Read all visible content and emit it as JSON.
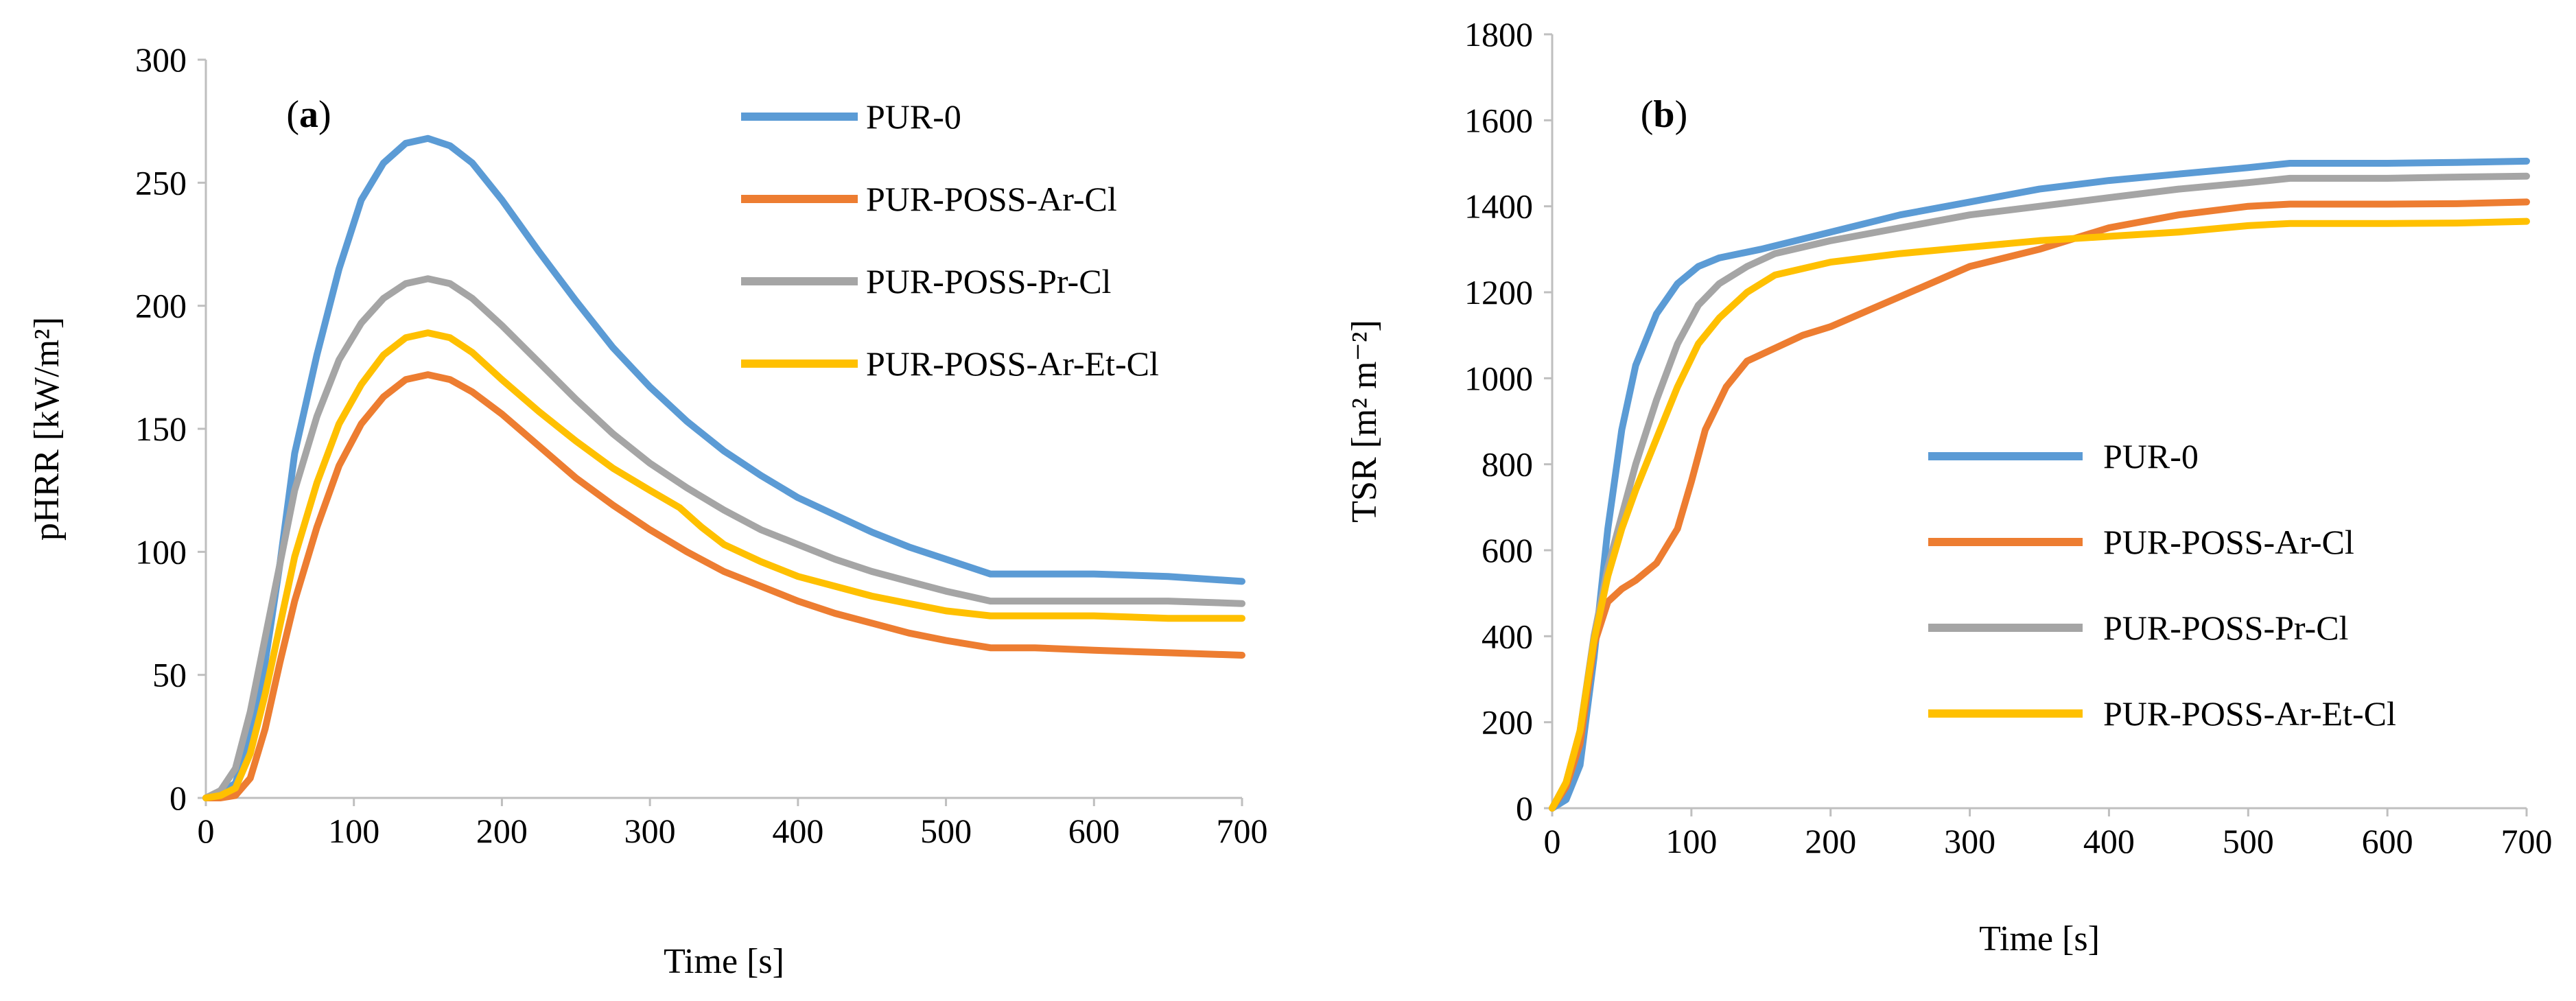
{
  "chart_data": [
    {
      "type": "line",
      "panel_label": "a",
      "xlabel": "Time [s]",
      "ylabel": "pHRR [kW/m²]",
      "xlim": [
        0,
        700
      ],
      "ylim": [
        0,
        300
      ],
      "xticks": [
        0,
        100,
        200,
        300,
        400,
        500,
        600,
        700
      ],
      "yticks": [
        0,
        50,
        100,
        150,
        200,
        250,
        300
      ],
      "legend_position": "top-right",
      "series": [
        {
          "name": "PUR-0",
          "color": "#5b9bd5",
          "points": [
            [
              0,
              0
            ],
            [
              10,
              2
            ],
            [
              20,
              6
            ],
            [
              30,
              25
            ],
            [
              40,
              55
            ],
            [
              50,
              95
            ],
            [
              60,
              140
            ],
            [
              75,
              180
            ],
            [
              90,
              215
            ],
            [
              105,
              243
            ],
            [
              120,
              258
            ],
            [
              135,
              266
            ],
            [
              150,
              268
            ],
            [
              165,
              265
            ],
            [
              180,
              258
            ],
            [
              200,
              243
            ],
            [
              225,
              222
            ],
            [
              250,
              202
            ],
            [
              275,
              183
            ],
            [
              300,
              167
            ],
            [
              325,
              153
            ],
            [
              350,
              141
            ],
            [
              375,
              131
            ],
            [
              400,
              122
            ],
            [
              425,
              115
            ],
            [
              450,
              108
            ],
            [
              475,
              102
            ],
            [
              500,
              97
            ],
            [
              530,
              91
            ],
            [
              560,
              91
            ],
            [
              600,
              91
            ],
            [
              650,
              90
            ],
            [
              700,
              88
            ]
          ]
        },
        {
          "name": "PUR-POSS-Ar-Cl",
          "color": "#ed7d31",
          "points": [
            [
              0,
              0
            ],
            [
              10,
              0
            ],
            [
              20,
              1
            ],
            [
              30,
              8
            ],
            [
              40,
              28
            ],
            [
              50,
              55
            ],
            [
              60,
              80
            ],
            [
              75,
              110
            ],
            [
              90,
              135
            ],
            [
              105,
              152
            ],
            [
              120,
              163
            ],
            [
              135,
              170
            ],
            [
              150,
              172
            ],
            [
              165,
              170
            ],
            [
              180,
              165
            ],
            [
              200,
              156
            ],
            [
              225,
              143
            ],
            [
              250,
              130
            ],
            [
              275,
              119
            ],
            [
              300,
              109
            ],
            [
              325,
              100
            ],
            [
              350,
              92
            ],
            [
              375,
              86
            ],
            [
              400,
              80
            ],
            [
              425,
              75
            ],
            [
              450,
              71
            ],
            [
              475,
              67
            ],
            [
              500,
              64
            ],
            [
              530,
              61
            ],
            [
              560,
              61
            ],
            [
              600,
              60
            ],
            [
              650,
              59
            ],
            [
              700,
              58
            ]
          ]
        },
        {
          "name": "PUR-POSS-Pr-Cl",
          "color": "#a5a5a5",
          "points": [
            [
              0,
              0
            ],
            [
              10,
              3
            ],
            [
              20,
              12
            ],
            [
              30,
              35
            ],
            [
              40,
              65
            ],
            [
              50,
              95
            ],
            [
              60,
              125
            ],
            [
              75,
              155
            ],
            [
              90,
              178
            ],
            [
              105,
              193
            ],
            [
              120,
              203
            ],
            [
              135,
              209
            ],
            [
              150,
              211
            ],
            [
              165,
              209
            ],
            [
              180,
              203
            ],
            [
              200,
              192
            ],
            [
              225,
              177
            ],
            [
              250,
              162
            ],
            [
              275,
              148
            ],
            [
              300,
              136
            ],
            [
              325,
              126
            ],
            [
              350,
              117
            ],
            [
              375,
              109
            ],
            [
              400,
              103
            ],
            [
              425,
              97
            ],
            [
              450,
              92
            ],
            [
              475,
              88
            ],
            [
              500,
              84
            ],
            [
              530,
              80
            ],
            [
              560,
              80
            ],
            [
              600,
              80
            ],
            [
              650,
              80
            ],
            [
              700,
              79
            ]
          ]
        },
        {
          "name": "PUR-POSS-Ar-Et-Cl",
          "color": "#ffc000",
          "points": [
            [
              0,
              0
            ],
            [
              10,
              1
            ],
            [
              20,
              4
            ],
            [
              30,
              18
            ],
            [
              40,
              42
            ],
            [
              50,
              70
            ],
            [
              60,
              98
            ],
            [
              75,
              128
            ],
            [
              90,
              152
            ],
            [
              105,
              168
            ],
            [
              120,
              180
            ],
            [
              135,
              187
            ],
            [
              150,
              189
            ],
            [
              165,
              187
            ],
            [
              180,
              181
            ],
            [
              200,
              170
            ],
            [
              225,
              157
            ],
            [
              250,
              145
            ],
            [
              275,
              134
            ],
            [
              300,
              125
            ],
            [
              320,
              118
            ],
            [
              335,
              110
            ],
            [
              350,
              103
            ],
            [
              375,
              96
            ],
            [
              400,
              90
            ],
            [
              425,
              86
            ],
            [
              450,
              82
            ],
            [
              475,
              79
            ],
            [
              500,
              76
            ],
            [
              530,
              74
            ],
            [
              560,
              74
            ],
            [
              600,
              74
            ],
            [
              650,
              73
            ],
            [
              700,
              73
            ]
          ]
        }
      ]
    },
    {
      "type": "line",
      "panel_label": "b",
      "xlabel": "Time [s]",
      "ylabel": "TSR [m² m⁻²]",
      "xlim": [
        0,
        700
      ],
      "ylim": [
        0,
        1800
      ],
      "xticks": [
        0,
        100,
        200,
        300,
        400,
        500,
        600,
        700
      ],
      "yticks": [
        0,
        200,
        400,
        600,
        800,
        1000,
        1200,
        1400,
        1600,
        1800
      ],
      "legend_position": "center-right",
      "series": [
        {
          "name": "PUR-0",
          "color": "#5b9bd5",
          "points": [
            [
              0,
              0
            ],
            [
              10,
              20
            ],
            [
              20,
              100
            ],
            [
              30,
              350
            ],
            [
              40,
              650
            ],
            [
              50,
              880
            ],
            [
              60,
              1030
            ],
            [
              75,
              1150
            ],
            [
              90,
              1220
            ],
            [
              105,
              1260
            ],
            [
              120,
              1280
            ],
            [
              150,
              1300
            ],
            [
              200,
              1340
            ],
            [
              250,
              1380
            ],
            [
              300,
              1410
            ],
            [
              350,
              1440
            ],
            [
              400,
              1460
            ],
            [
              450,
              1475
            ],
            [
              500,
              1490
            ],
            [
              530,
              1500
            ],
            [
              600,
              1500
            ],
            [
              650,
              1502
            ],
            [
              700,
              1505
            ]
          ]
        },
        {
          "name": "PUR-POSS-Ar-Cl",
          "color": "#ed7d31",
          "points": [
            [
              0,
              0
            ],
            [
              10,
              50
            ],
            [
              20,
              150
            ],
            [
              30,
              380
            ],
            [
              40,
              480
            ],
            [
              50,
              510
            ],
            [
              60,
              530
            ],
            [
              75,
              570
            ],
            [
              90,
              650
            ],
            [
              100,
              760
            ],
            [
              110,
              880
            ],
            [
              125,
              980
            ],
            [
              140,
              1040
            ],
            [
              160,
              1070
            ],
            [
              180,
              1100
            ],
            [
              200,
              1120
            ],
            [
              250,
              1190
            ],
            [
              300,
              1260
            ],
            [
              350,
              1300
            ],
            [
              400,
              1350
            ],
            [
              450,
              1380
            ],
            [
              500,
              1400
            ],
            [
              530,
              1405
            ],
            [
              600,
              1405
            ],
            [
              650,
              1406
            ],
            [
              700,
              1410
            ]
          ]
        },
        {
          "name": "PUR-POSS-Pr-Cl",
          "color": "#a5a5a5",
          "points": [
            [
              0,
              0
            ],
            [
              10,
              60
            ],
            [
              20,
              180
            ],
            [
              30,
              400
            ],
            [
              40,
              560
            ],
            [
              50,
              680
            ],
            [
              60,
              800
            ],
            [
              75,
              950
            ],
            [
              90,
              1080
            ],
            [
              105,
              1170
            ],
            [
              120,
              1220
            ],
            [
              140,
              1260
            ],
            [
              160,
              1290
            ],
            [
              200,
              1320
            ],
            [
              250,
              1350
            ],
            [
              300,
              1380
            ],
            [
              350,
              1400
            ],
            [
              400,
              1420
            ],
            [
              450,
              1440
            ],
            [
              500,
              1455
            ],
            [
              530,
              1465
            ],
            [
              600,
              1465
            ],
            [
              650,
              1468
            ],
            [
              700,
              1470
            ]
          ]
        },
        {
          "name": "PUR-POSS-Ar-Et-Cl",
          "color": "#ffc000",
          "points": [
            [
              0,
              0
            ],
            [
              10,
              60
            ],
            [
              20,
              180
            ],
            [
              30,
              390
            ],
            [
              40,
              540
            ],
            [
              50,
              650
            ],
            [
              60,
              740
            ],
            [
              75,
              860
            ],
            [
              90,
              980
            ],
            [
              105,
              1080
            ],
            [
              120,
              1140
            ],
            [
              140,
              1200
            ],
            [
              160,
              1240
            ],
            [
              200,
              1270
            ],
            [
              250,
              1290
            ],
            [
              300,
              1305
            ],
            [
              350,
              1320
            ],
            [
              400,
              1330
            ],
            [
              450,
              1340
            ],
            [
              500,
              1355
            ],
            [
              530,
              1360
            ],
            [
              600,
              1360
            ],
            [
              650,
              1361
            ],
            [
              700,
              1365
            ]
          ]
        }
      ]
    }
  ]
}
